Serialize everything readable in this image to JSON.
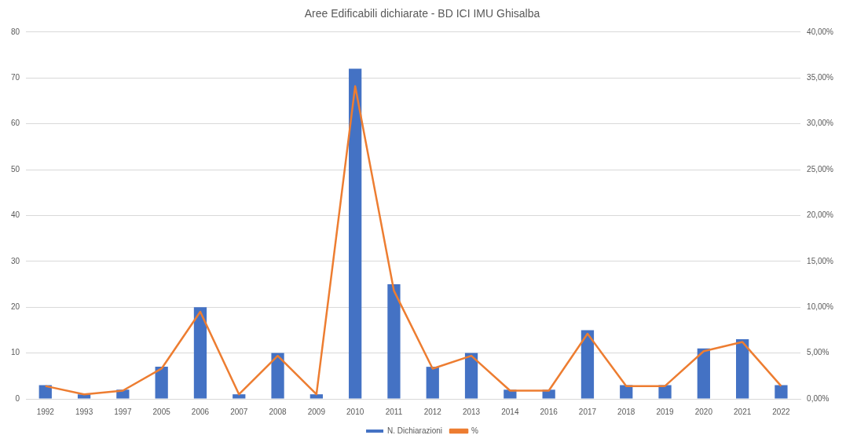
{
  "chart_data": {
    "type": "bar",
    "title": "Aree Edificabili dichiarate - BD ICI IMU Ghisalba",
    "categories": [
      "1992",
      "1993",
      "1997",
      "2005",
      "2006",
      "2007",
      "2008",
      "2009",
      "2010",
      "2011",
      "2012",
      "2013",
      "2014",
      "2016",
      "2017",
      "2018",
      "2019",
      "2020",
      "2021",
      "2022"
    ],
    "series": [
      {
        "name": "N. Dichiarazioni",
        "color": "#4472c4",
        "values": [
          3,
          1,
          2,
          7,
          20,
          1,
          10,
          1,
          72,
          25,
          7,
          10,
          2,
          2,
          15,
          3,
          3,
          11,
          13,
          3
        ]
      },
      {
        "name": "%",
        "type": "line",
        "axis": "y2",
        "color": "#ed7d31",
        "marker": "none",
        "values": [
          1.4,
          0.5,
          0.9,
          3.3,
          9.5,
          0.5,
          4.7,
          0.5,
          34.1,
          11.8,
          3.3,
          4.7,
          0.9,
          0.9,
          7.1,
          1.4,
          1.4,
          5.2,
          6.2,
          1.4
        ]
      }
    ],
    "ylim": [
      0,
      80
    ],
    "yticks": [
      0,
      10,
      20,
      30,
      40,
      50,
      60,
      70,
      80
    ],
    "y2lim": [
      0,
      40
    ],
    "y2ticks": [
      {
        "value": 0,
        "label": "0,00%"
      },
      {
        "value": 5,
        "label": "5,00%"
      },
      {
        "value": 10,
        "label": "10,00%"
      },
      {
        "value": 15,
        "label": "15,00%"
      },
      {
        "value": 20,
        "label": "20,00%"
      },
      {
        "value": 25,
        "label": "25,00%"
      },
      {
        "value": 30,
        "label": "30,00%"
      },
      {
        "value": 35,
        "label": "35,00%"
      },
      {
        "value": 40,
        "label": "40,00%"
      }
    ],
    "grid": "y",
    "legend": "bottom"
  }
}
